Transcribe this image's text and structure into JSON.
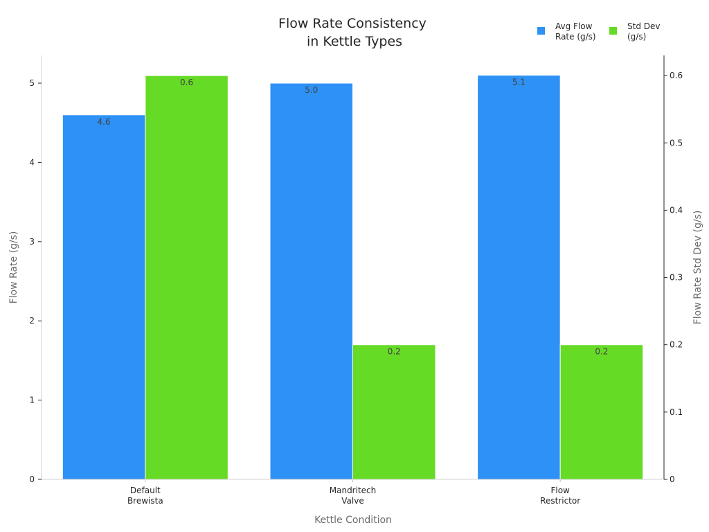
{
  "chart_data": {
    "type": "bar",
    "title": [
      "Flow Rate Consistency",
      "in Kettle Types"
    ],
    "xlabel": "Kettle Condition",
    "ylabel": "Flow Rate (g/s)",
    "y2label": "Flow Rate Std Dev (g/s)",
    "categories": [
      [
        "Default",
        "Brewista"
      ],
      [
        "Mandritech",
        "Valve"
      ],
      [
        "Flow",
        "Restrictor"
      ]
    ],
    "ylim": [
      0,
      5.35
    ],
    "y2lim": [
      0,
      0.63
    ],
    "yticks": [
      0,
      1,
      2,
      3,
      4,
      5
    ],
    "y2ticks": [
      0,
      0.1,
      0.2,
      0.3,
      0.4,
      0.5,
      0.6
    ],
    "y2tick_labels": [
      "0",
      "0.1",
      "0.2",
      "0.3",
      "0.4",
      "0.5",
      "0.6"
    ],
    "series": [
      {
        "name": [
          "Avg Flow",
          "Rate (g/s)"
        ],
        "axis": "left",
        "color": "#2e91f5",
        "values": [
          4.6,
          5.0,
          5.1
        ],
        "labels": [
          "4.6",
          "5.0",
          "5.1"
        ]
      },
      {
        "name": [
          "Std Dev",
          "(g/s)"
        ],
        "axis": "right",
        "color": "#66db26",
        "values": [
          0.6,
          0.2,
          0.2
        ],
        "labels": [
          "0.6",
          "0.2",
          "0.2"
        ]
      }
    ],
    "legend_position": "top-right",
    "grid": false
  }
}
